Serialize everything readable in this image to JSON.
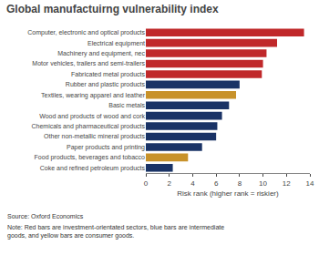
{
  "chart_data": {
    "type": "bar",
    "orientation": "horizontal",
    "title": "Global manufactuirng vulnerability index",
    "categories": [
      "Computer, electronic and optical products",
      "Electrical equipment",
      "Machinery and equipment, nec",
      "Motor vehicles, trailers and semi-trailers",
      "Fabricated metal products",
      "Rubber and plastic products",
      "Textiles, wearing apparel and leather",
      "Basic metals",
      "Wood and products of wood and cork",
      "Chemicals and pharmaceutical products",
      "Other non-metallic mineral products",
      "Paper products and printing",
      "Food products, beverages and tobacco",
      "Coke and refined petroleum products"
    ],
    "values": [
      13.5,
      11.2,
      10.3,
      10.0,
      9.9,
      8.0,
      7.7,
      7.1,
      6.5,
      6.1,
      6.0,
      4.8,
      3.6,
      2.3
    ],
    "colors": [
      "#c0282a",
      "#c0282a",
      "#c0282a",
      "#c0282a",
      "#c0282a",
      "#1a3366",
      "#c8922a",
      "#1a3366",
      "#1a3366",
      "#1a3366",
      "#1a3366",
      "#1a3366",
      "#c8922a",
      "#1a3366"
    ],
    "xlabel": "Risk rank (higher rank = riskier)",
    "xlim": [
      0,
      14
    ],
    "xticks": [
      0,
      2,
      4,
      6,
      8,
      10,
      12,
      14
    ],
    "grid": false,
    "annotations": [
      "Source: Oxford Economics",
      "Note: Red bars are investment-orientated sectors, blue bars are intermediate goods, and yellow bars are consumer goods."
    ]
  }
}
